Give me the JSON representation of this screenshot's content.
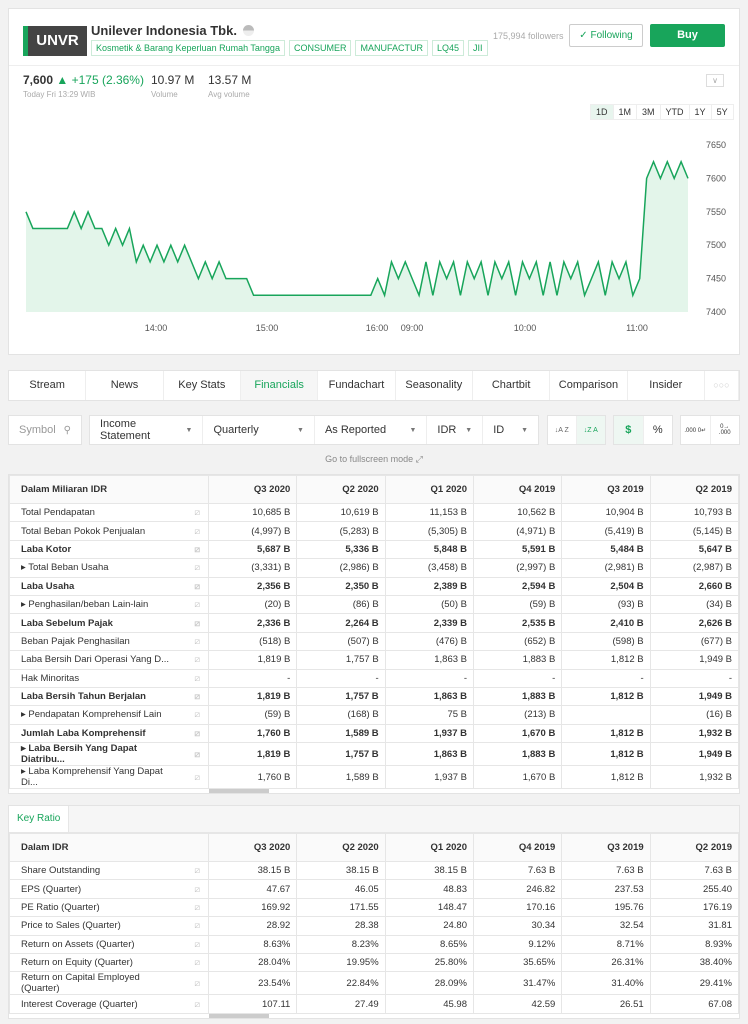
{
  "header": {
    "ticker": "UNVR",
    "company": "Unilever Indonesia Tbk.",
    "tags": [
      "Kosmetik & Barang Keperluan Rumah Tangga",
      "CONSUMER",
      "MANUFACTUR",
      "LQ45",
      "JII"
    ],
    "followers": "175,994 followers",
    "following_label": "✓ Following",
    "buy_label": "Buy"
  },
  "quote": {
    "price": "7,600",
    "change": "▲ +175 (2.36%)",
    "time": "Today Fri 13:29 WIB",
    "volume": "10.97 M",
    "volume_label": "Volume",
    "avg_volume": "13.57 M",
    "avg_volume_label": "Avg volume"
  },
  "ranges": [
    "1D",
    "1M",
    "3M",
    "YTD",
    "1Y",
    "5Y"
  ],
  "chart_data": {
    "type": "area",
    "color": "#18a55b",
    "y_ticks": [
      7400,
      7450,
      7500,
      7550,
      7600,
      7650
    ],
    "ylim": [
      7400,
      7650
    ],
    "x_ticks": [
      "14:00",
      "15:00",
      "16:00",
      "09:00",
      "10:00",
      "11:00"
    ],
    "values": [
      7550,
      7525,
      7525,
      7525,
      7525,
      7525,
      7525,
      7550,
      7525,
      7550,
      7525,
      7525,
      7500,
      7525,
      7500,
      7525,
      7475,
      7500,
      7475,
      7500,
      7475,
      7500,
      7475,
      7500,
      7475,
      7450,
      7475,
      7450,
      7475,
      7450,
      7450,
      7450,
      7450,
      7425,
      7425,
      7425,
      7425,
      7425,
      7425,
      7425,
      7425,
      7425,
      7425,
      7425,
      7425,
      7425,
      7425,
      7425,
      7425,
      7425,
      7425,
      7450,
      7425,
      7475,
      7450,
      7475,
      7450,
      7425,
      7475,
      7425,
      7475,
      7450,
      7475,
      7425,
      7475,
      7450,
      7475,
      7425,
      7475,
      7450,
      7475,
      7425,
      7475,
      7450,
      7475,
      7425,
      7475,
      7425,
      7475,
      7450,
      7475,
      7425,
      7450,
      7475,
      7425,
      7475,
      7450,
      7475,
      7425,
      7450,
      7600,
      7625,
      7600,
      7625,
      7600,
      7625,
      7600
    ]
  },
  "tabs": [
    "Stream",
    "News",
    "Key Stats",
    "Financials",
    "Fundachart",
    "Seasonality",
    "Chartbit",
    "Comparison",
    "Insider",
    "○○○"
  ],
  "toolbar": {
    "symbol_placeholder": "Symbol",
    "statement": "Income Statement",
    "period": "Quarterly",
    "type": "As Reported",
    "currency": "IDR",
    "lang": "ID",
    "sort_asc": "↓A Z",
    "sort_desc": "↓Z A",
    "dollar": "$",
    "percent": "%",
    "dec_less": ".000 0↵",
    "dec_more": "0→ .000"
  },
  "fullscreen": "Go to fullscreen mode ⤢",
  "financials": {
    "header": "Dalam Miliaran IDR",
    "columns": [
      "Q3 2020",
      "Q2 2020",
      "Q1 2020",
      "Q4 2019",
      "Q3 2019",
      "Q2 2019"
    ],
    "rows": [
      {
        "label": "Total Pendapatan",
        "values": [
          "10,685 B",
          "10,619 B",
          "11,153 B",
          "10,562 B",
          "10,904 B",
          "10,793 B"
        ]
      },
      {
        "label": "Total Beban Pokok Penjualan",
        "values": [
          "(4,997) B",
          "(5,283) B",
          "(5,305) B",
          "(4,971) B",
          "(5,419) B",
          "(5,145) B"
        ]
      },
      {
        "label": "Laba Kotor",
        "bold": true,
        "values": [
          "5,687 B",
          "5,336 B",
          "5,848 B",
          "5,591 B",
          "5,484 B",
          "5,647 B"
        ]
      },
      {
        "label": "▸ Total Beban Usaha",
        "values": [
          "(3,331) B",
          "(2,986) B",
          "(3,458) B",
          "(2,997) B",
          "(2,981) B",
          "(2,987) B"
        ]
      },
      {
        "label": "Laba Usaha",
        "bold": true,
        "values": [
          "2,356 B",
          "2,350 B",
          "2,389 B",
          "2,594 B",
          "2,504 B",
          "2,660 B"
        ]
      },
      {
        "label": "▸ Penghasilan/beban Lain-lain",
        "values": [
          "(20) B",
          "(86) B",
          "(50) B",
          "(59) B",
          "(93) B",
          "(34) B"
        ]
      },
      {
        "label": "Laba Sebelum Pajak",
        "bold": true,
        "values": [
          "2,336 B",
          "2,264 B",
          "2,339 B",
          "2,535 B",
          "2,410 B",
          "2,626 B"
        ]
      },
      {
        "label": "Beban Pajak Penghasilan",
        "values": [
          "(518) B",
          "(507) B",
          "(476) B",
          "(652) B",
          "(598) B",
          "(677) B"
        ]
      },
      {
        "label": "Laba Bersih Dari Operasi Yang D...",
        "values": [
          "1,819 B",
          "1,757 B",
          "1,863 B",
          "1,883 B",
          "1,812 B",
          "1,949 B"
        ]
      },
      {
        "label": "Hak Minoritas",
        "values": [
          "-",
          "-",
          "-",
          "-",
          "-",
          "-"
        ]
      },
      {
        "label": "Laba Bersih Tahun Berjalan",
        "bold": true,
        "values": [
          "1,819 B",
          "1,757 B",
          "1,863 B",
          "1,883 B",
          "1,812 B",
          "1,949 B"
        ]
      },
      {
        "label": "▸ Pendapatan Komprehensif Lain",
        "values": [
          "(59) B",
          "(168) B",
          "75 B",
          "(213) B",
          "",
          "(16) B"
        ]
      },
      {
        "label": "Jumlah Laba Komprehensif",
        "bold": true,
        "values": [
          "1,760 B",
          "1,589 B",
          "1,937 B",
          "1,670 B",
          "1,812 B",
          "1,932 B"
        ]
      },
      {
        "label": "▸ Laba Bersih Yang Dapat Diatribu...",
        "bold": true,
        "values": [
          "1,819 B",
          "1,757 B",
          "1,863 B",
          "1,883 B",
          "1,812 B",
          "1,949 B"
        ]
      },
      {
        "label": "▸ Laba Komprehensif Yang Dapat Di...",
        "values": [
          "1,760 B",
          "1,589 B",
          "1,937 B",
          "1,670 B",
          "1,812 B",
          "1,932 B"
        ]
      }
    ]
  },
  "key_ratio": {
    "tab": "Key Ratio",
    "header": "Dalam IDR",
    "columns": [
      "Q3 2020",
      "Q2 2020",
      "Q1 2020",
      "Q4 2019",
      "Q3 2019",
      "Q2 2019"
    ],
    "rows": [
      {
        "label": "Share Outstanding",
        "values": [
          "38.15 B",
          "38.15 B",
          "38.15 B",
          "7.63 B",
          "7.63 B",
          "7.63 B"
        ]
      },
      {
        "label": "EPS (Quarter)",
        "values": [
          "47.67",
          "46.05",
          "48.83",
          "246.82",
          "237.53",
          "255.40"
        ]
      },
      {
        "label": "PE Ratio (Quarter)",
        "values": [
          "169.92",
          "171.55",
          "148.47",
          "170.16",
          "195.76",
          "176.19"
        ]
      },
      {
        "label": "Price to Sales (Quarter)",
        "values": [
          "28.92",
          "28.38",
          "24.80",
          "30.34",
          "32.54",
          "31.81"
        ]
      },
      {
        "label": "Return on Assets (Quarter)",
        "values": [
          "8.63%",
          "8.23%",
          "8.65%",
          "9.12%",
          "8.71%",
          "8.93%"
        ]
      },
      {
        "label": "Return on Equity (Quarter)",
        "values": [
          "28.04%",
          "19.95%",
          "25.80%",
          "35.65%",
          "26.31%",
          "38.40%"
        ]
      },
      {
        "label": "Return on Capital Employed (Quarter)",
        "values": [
          "23.54%",
          "22.84%",
          "28.09%",
          "31.47%",
          "31.40%",
          "29.41%"
        ]
      },
      {
        "label": "Interest Coverage (Quarter)",
        "values": [
          "107.11",
          "27.49",
          "45.98",
          "42.59",
          "26.51",
          "67.08"
        ]
      }
    ]
  }
}
